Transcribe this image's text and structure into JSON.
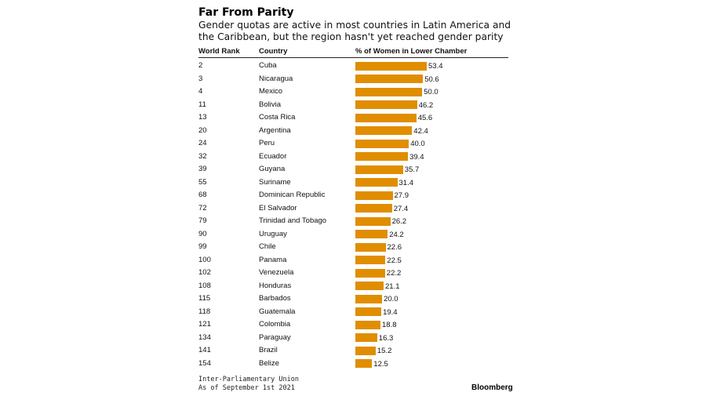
{
  "title": "Far From Parity",
  "subtitle": "Gender quotas are active in most countries in Latin America and the Caribbean, but the region hasn't yet reached gender parity",
  "columns": {
    "rank": "World Rank",
    "country": "Country",
    "value": "% of Women in Lower Chamber"
  },
  "bar_color": "#e08e00",
  "source_line1": "Inter-Parliamentary Union",
  "source_line2": "As of September 1st 2021",
  "brand": "Bloomberg",
  "chart_data": {
    "type": "bar",
    "orientation": "horizontal",
    "title": "Far From Parity",
    "xlabel": "% of Women in Lower Chamber",
    "xlim": [
      0,
      53.4
    ],
    "ranks": [
      "2",
      "3",
      "4",
      "11",
      "13",
      "20",
      "24",
      "32",
      "39",
      "55",
      "68",
      "72",
      "79",
      "90",
      "99",
      "100",
      "102",
      "108",
      "115",
      "118",
      "121",
      "134",
      "141",
      "154"
    ],
    "categories": [
      "Cuba",
      "Nicaragua",
      "Mexico",
      "Bolivia",
      "Costa Rica",
      "Argentina",
      "Peru",
      "Ecuador",
      "Guyana",
      "Suriname",
      "Dominican Republic",
      "El Salvador",
      "Trinidad and Tobago",
      "Uruguay",
      "Chile",
      "Panama",
      "Venezuela",
      "Honduras",
      "Barbados",
      "Guatemala",
      "Colombia",
      "Paraguay",
      "Brazil",
      "Belize"
    ],
    "values": [
      53.4,
      50.6,
      50.0,
      46.2,
      45.6,
      42.4,
      40.0,
      39.4,
      35.7,
      31.4,
      27.9,
      27.4,
      26.2,
      24.2,
      22.6,
      22.5,
      22.2,
      21.1,
      20.0,
      19.4,
      18.8,
      16.3,
      15.2,
      12.5
    ],
    "value_labels": [
      "53.4",
      "50.6",
      "50.0",
      "46.2",
      "45.6",
      "42.4",
      "40.0",
      "39.4",
      "35.7",
      "31.4",
      "27.9",
      "27.4",
      "26.2",
      "24.2",
      "22.6",
      "22.5",
      "22.2",
      "21.1",
      "20.0",
      "19.4",
      "18.8",
      "16.3",
      "15.2",
      "12.5"
    ]
  }
}
